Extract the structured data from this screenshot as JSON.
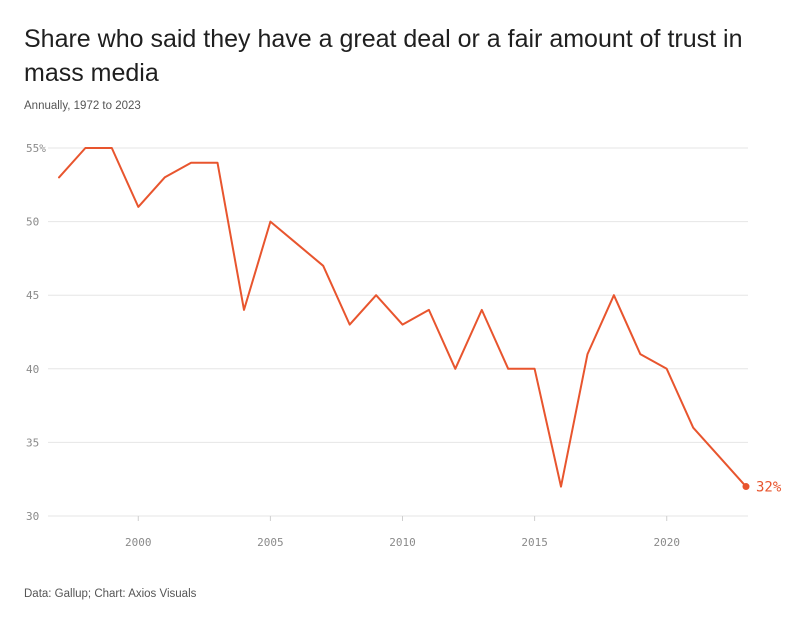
{
  "title": "Share who said they have a great deal or a fair amount of trust in mass media",
  "subtitle": "Annually, 1972 to 2023",
  "source": "Data: Gallup; Chart: Axios Visuals",
  "colors": {
    "line": "#e8552e",
    "grid": "#e6e6e6",
    "axis_text": "#8a8a8a"
  },
  "chart_data": {
    "type": "line",
    "title": "Share who said they have a great deal or a fair amount of trust in mass media",
    "subtitle": "Annually, 1972 to 2023",
    "xlabel": "",
    "ylabel": "",
    "xlim": [
      1997,
      2023
    ],
    "ylim": [
      30,
      55
    ],
    "grid": true,
    "x_ticks": [
      2000,
      2005,
      2010,
      2015,
      2020
    ],
    "x_tick_labels": [
      "2000",
      "2005",
      "2010",
      "2015",
      "2020"
    ],
    "y_ticks": [
      55,
      50,
      45,
      40,
      35,
      30
    ],
    "y_tick_labels": [
      "55%",
      "50",
      "45",
      "40",
      "35",
      "30"
    ],
    "end_label": "32%",
    "series": [
      {
        "x": [
          1997,
          1998,
          1999,
          2000,
          2001,
          2002,
          2003,
          2004,
          2005,
          2006,
          2007,
          2008,
          2009,
          2010,
          2011,
          2012,
          2013,
          2014,
          2015,
          2016,
          2017,
          2018,
          2019,
          2020,
          2021,
          2022,
          2023
        ],
        "values": [
          53,
          55,
          55,
          51,
          53,
          54,
          54,
          44,
          50,
          48.5,
          47,
          43,
          45,
          43,
          44,
          40,
          44,
          40,
          40,
          32,
          41,
          45,
          41,
          40,
          36,
          34,
          32
        ]
      }
    ]
  }
}
